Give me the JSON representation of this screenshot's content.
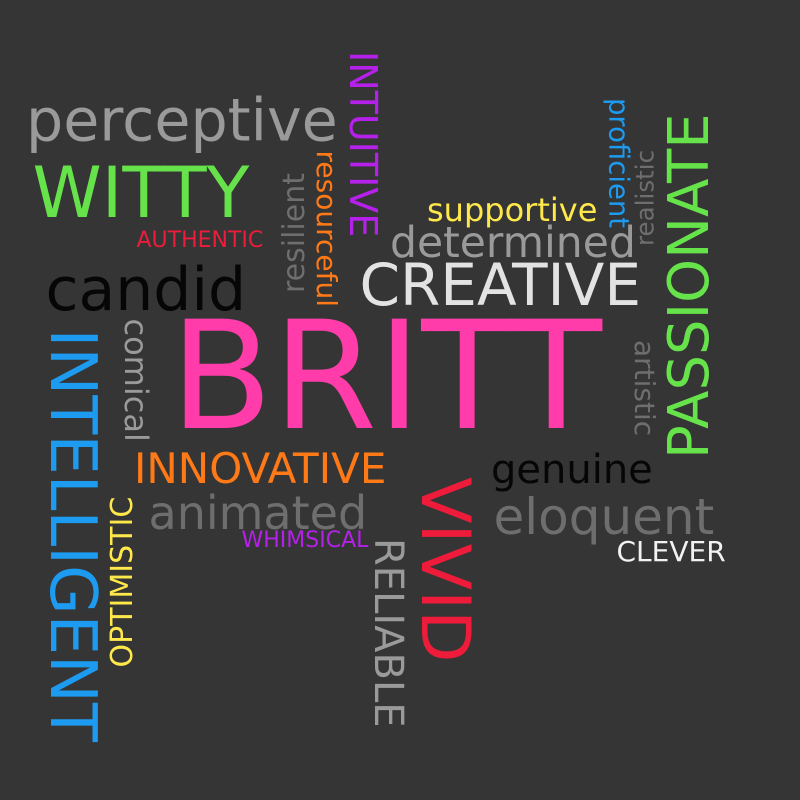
{
  "background": "#353535",
  "colors": {
    "pink": "#ff3ca9",
    "green": "#66e34a",
    "gray": "#9a9a9a",
    "lightgray": "#e3e3e3",
    "orange": "#ff7a17",
    "red": "#ee1c3a",
    "blue": "#1d9bf0",
    "purple": "#b520ea",
    "yellow": "#ffe94a",
    "black": "#060606",
    "white": "#f2f2f2"
  },
  "words": [
    {
      "id": "britt",
      "text": "BRITT",
      "color": "#ff3ca9"
    },
    {
      "id": "witty",
      "text": "WITTY",
      "color": "#66e34a"
    },
    {
      "id": "perceptive",
      "text": "perceptive",
      "color": "#9a9a9a"
    },
    {
      "id": "intuitive",
      "text": "INTUITIVE",
      "color": "#b520ea"
    },
    {
      "id": "resourceful",
      "text": "resourceful",
      "color": "#ff7a17"
    },
    {
      "id": "resilient",
      "text": "resilient",
      "color": "#6e6e6e"
    },
    {
      "id": "authentic",
      "text": "AUTHENTIC",
      "color": "#ee1c3a"
    },
    {
      "id": "candid",
      "text": "candid",
      "color": "#060606"
    },
    {
      "id": "supportive",
      "text": "supportive",
      "color": "#ffe94a"
    },
    {
      "id": "determined",
      "text": "determined",
      "color": "#9a9a9a"
    },
    {
      "id": "proficient",
      "text": "proficient",
      "color": "#1d9bf0"
    },
    {
      "id": "realistic",
      "text": "realistic",
      "color": "#6e6e6e"
    },
    {
      "id": "passionate",
      "text": "PASSIONATE",
      "color": "#66e34a"
    },
    {
      "id": "creative",
      "text": "CREATIVE",
      "color": "#e3e3e3"
    },
    {
      "id": "intelligent",
      "text": "INTELLIGENT",
      "color": "#1d9bf0"
    },
    {
      "id": "comical",
      "text": "comical",
      "color": "#9a9a9a"
    },
    {
      "id": "artistic",
      "text": "artistic",
      "color": "#6e6e6e"
    },
    {
      "id": "innovative",
      "text": "INNOVATIVE",
      "color": "#ff7a17"
    },
    {
      "id": "genuine",
      "text": "genuine",
      "color": "#060606"
    },
    {
      "id": "vivid",
      "text": "VIVID",
      "color": "#ee1c3a"
    },
    {
      "id": "animated",
      "text": "animated",
      "color": "#6e6e6e"
    },
    {
      "id": "eloquent",
      "text": "eloquent",
      "color": "#6e6e6e"
    },
    {
      "id": "whimsical",
      "text": "WHIMSICAL",
      "color": "#b520ea"
    },
    {
      "id": "clever",
      "text": "CLEVER",
      "color": "#f2f2f2"
    },
    {
      "id": "optimistic",
      "text": "OPTIMISTIC",
      "color": "#ffe94a"
    },
    {
      "id": "reliable",
      "text": "RELIABLE",
      "color": "#9a9a9a"
    }
  ]
}
